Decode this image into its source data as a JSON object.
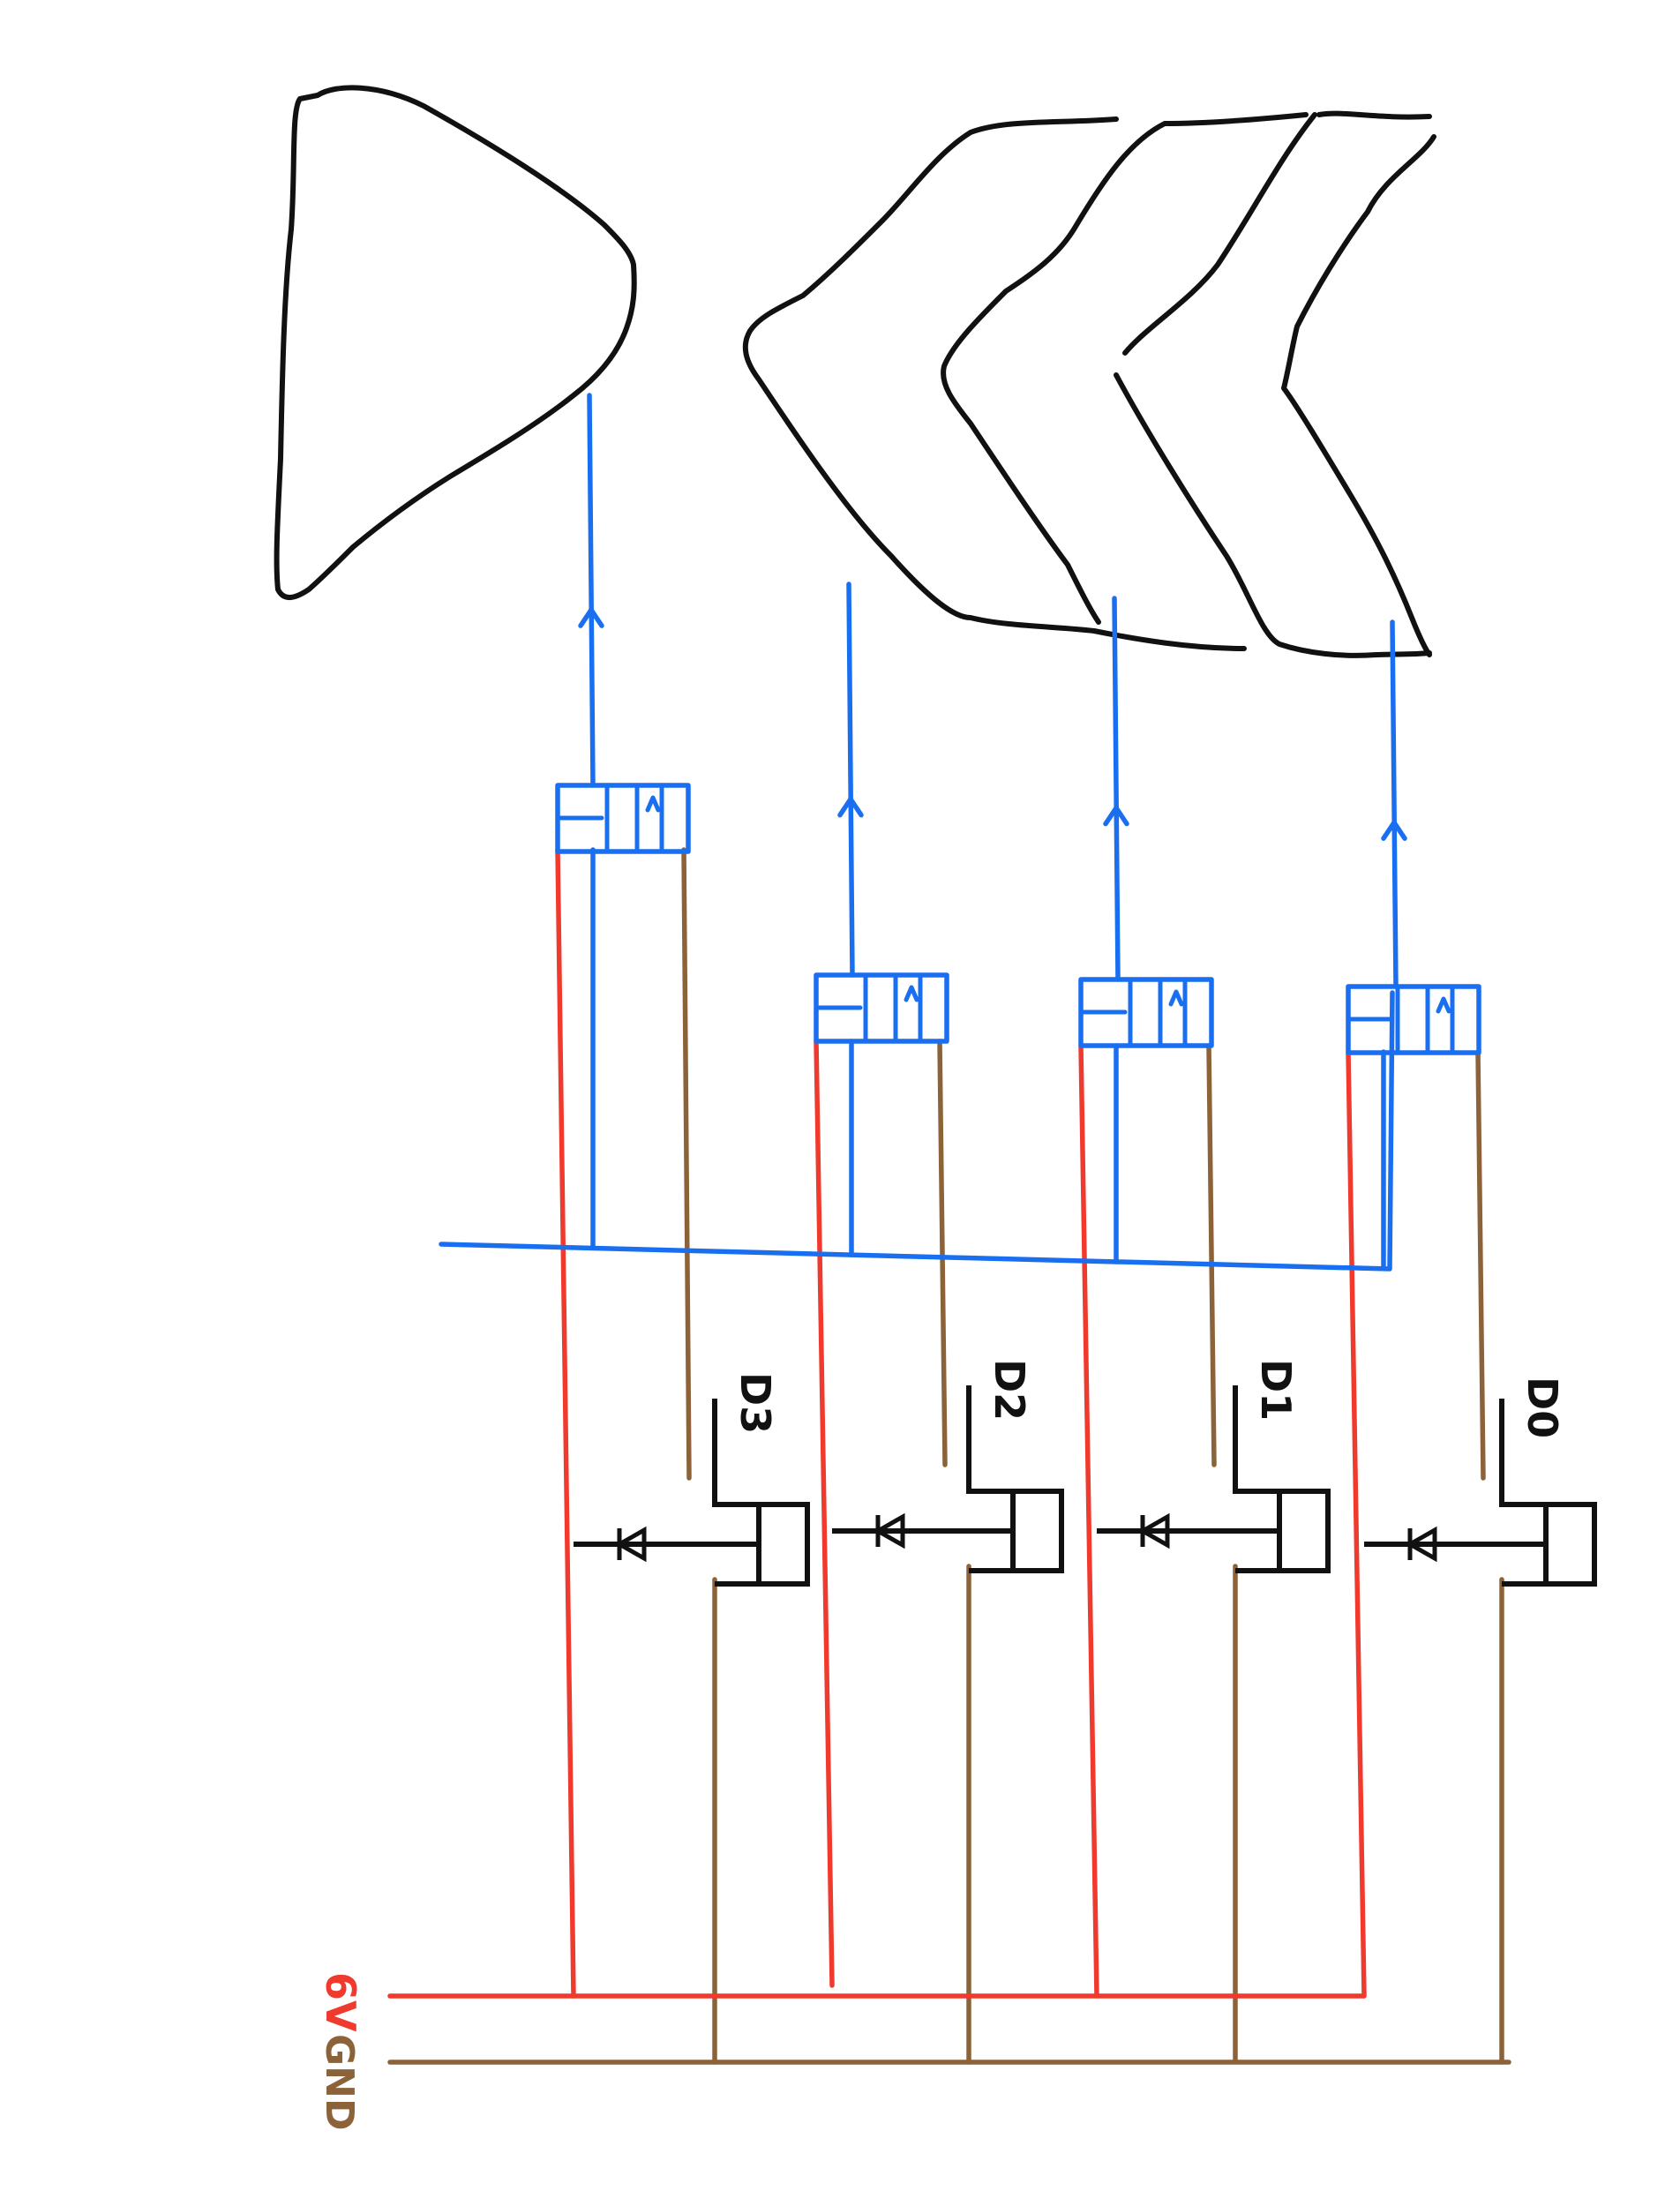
{
  "colors": {
    "ink": "#111111",
    "signal": "#1a6ff0",
    "supply": "#f03a2e",
    "ground": "#8c6238",
    "background": "#ffffff"
  },
  "rails": {
    "supply_label": "6V",
    "ground_label": "GND"
  },
  "stages": [
    {
      "label": "D3"
    },
    {
      "label": "D2"
    },
    {
      "label": "D1"
    },
    {
      "label": "D0"
    }
  ],
  "icons": {
    "speaker": "speaker-icon",
    "arrows": "chevron-left-icon",
    "play": "triangle-icon"
  }
}
